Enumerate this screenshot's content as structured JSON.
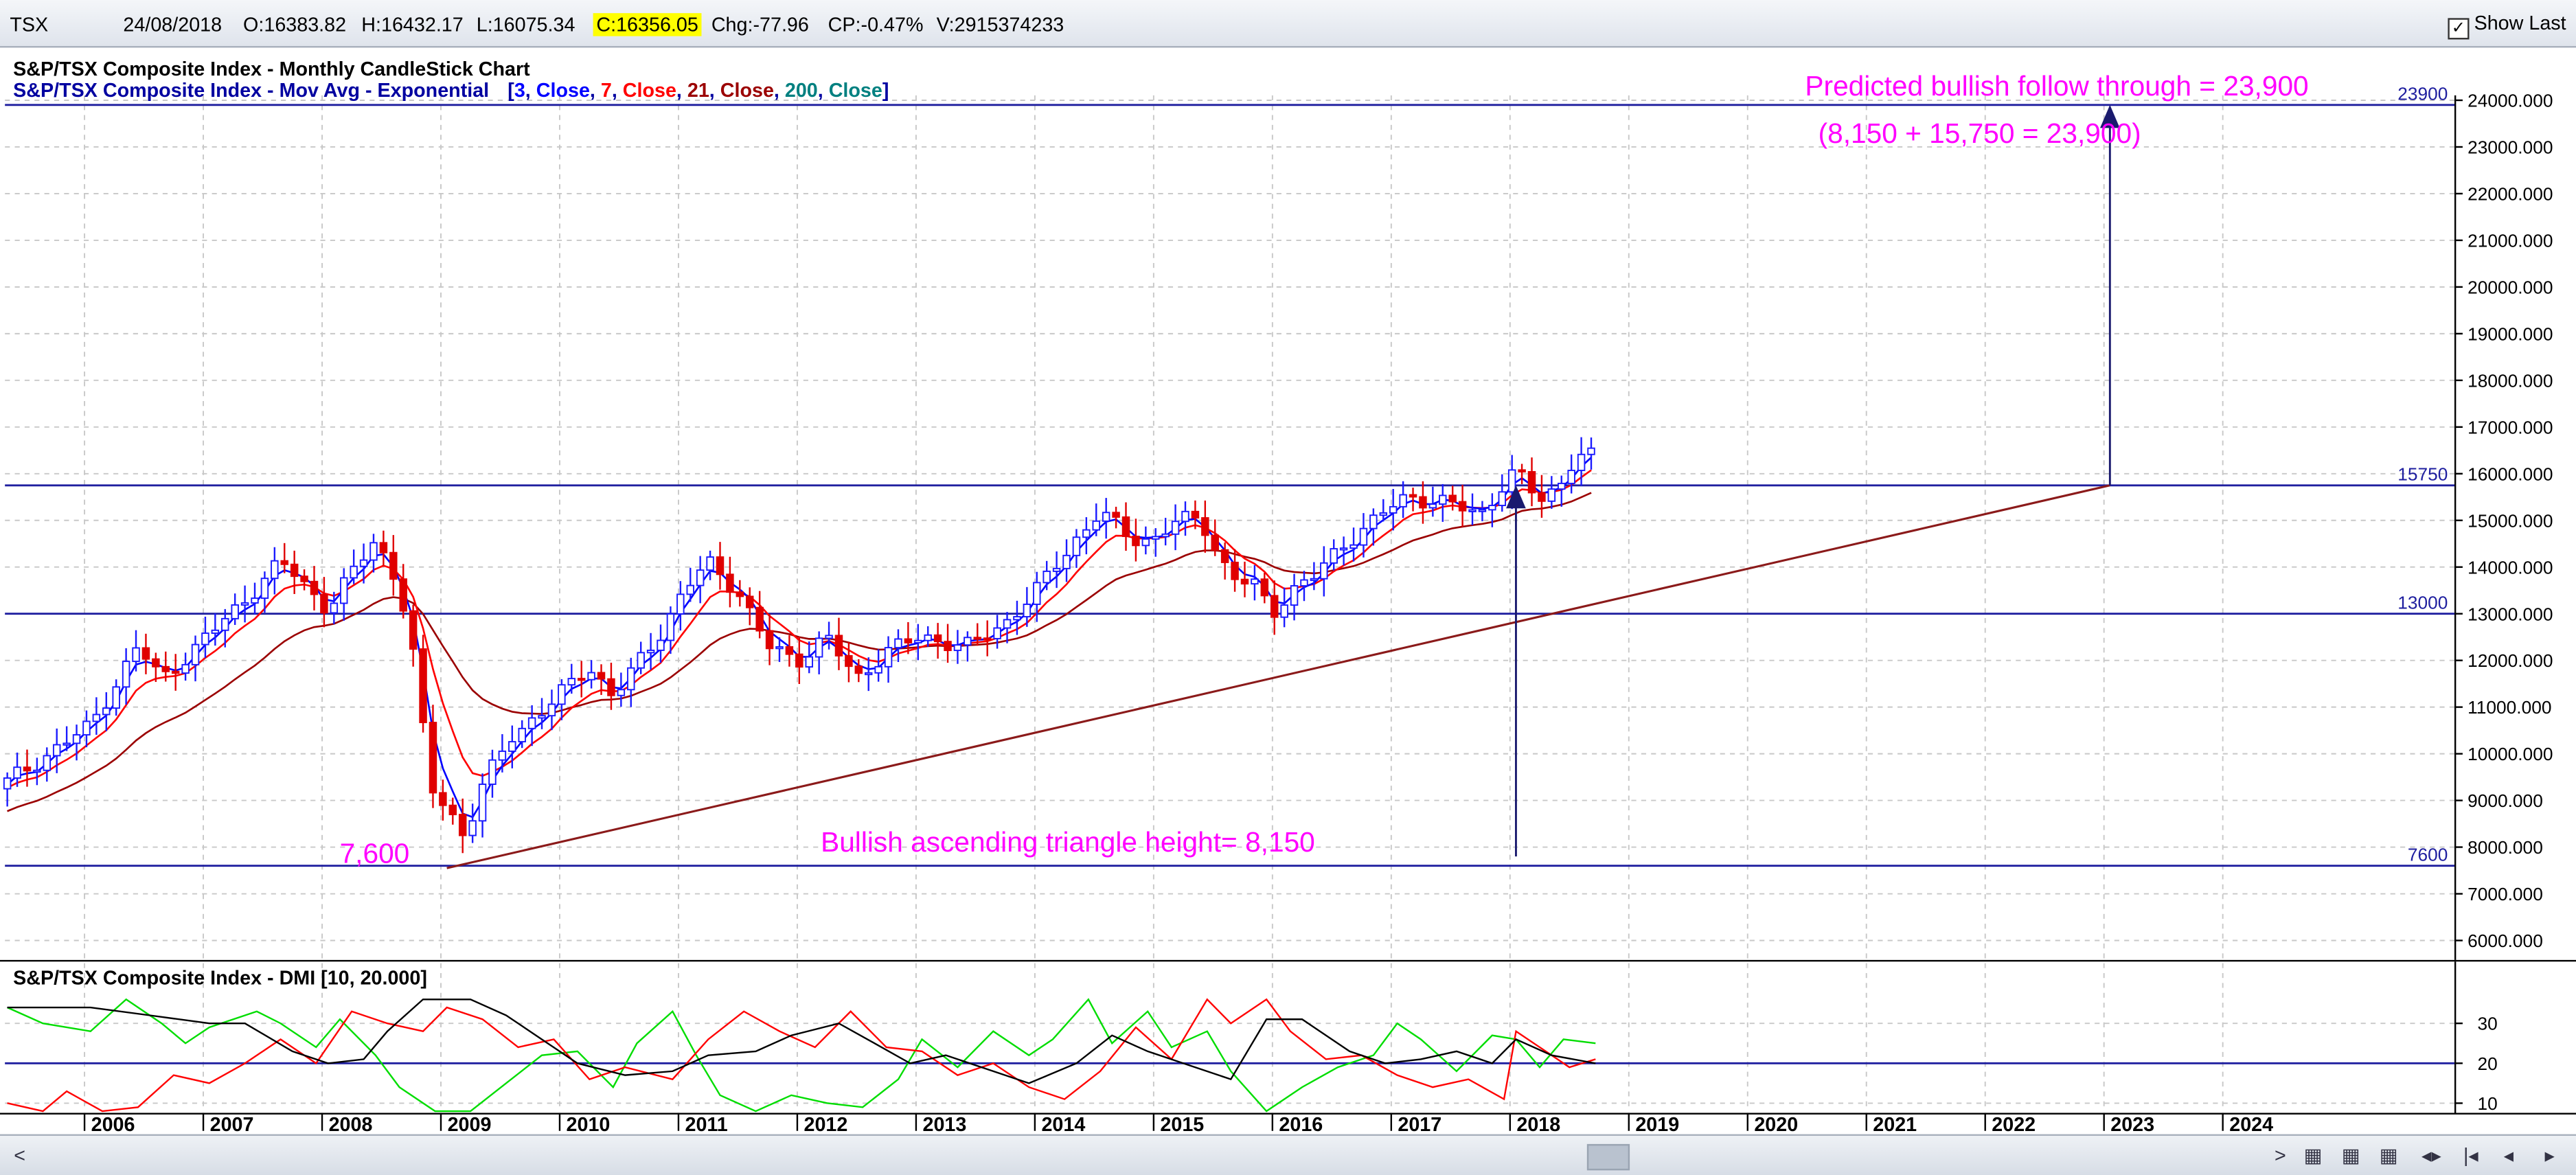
{
  "header": {
    "symbol": "TSX",
    "date": "24/08/2018",
    "open": "O:16383.82",
    "high": "H:16432.17",
    "low": "L:16075.34",
    "close": "C:16356.05",
    "change": "Chg:-77.96",
    "change_pct": "CP:-0.47%",
    "volume": "V:2915374233",
    "show_last_label": "Show Last",
    "show_last_checked": true
  },
  "colors": {
    "grid": "#c8c8c8",
    "candle_up": "#1a1aff",
    "candle_down": "#e00000",
    "ema3": "#0000ff",
    "ema7": "#ff0000",
    "ema21": "#9b0000",
    "ema200": "#008080",
    "hline": "#1f1f9f",
    "annotation": "#ff00ff",
    "dmi_plus": "#00dd00",
    "dmi_minus": "#ff0000",
    "adx": "#000000"
  },
  "chart_data": [
    {
      "type": "candlestick",
      "title": "S&P/TSX Composite Index - Monthly CandleStick Chart",
      "subtitle": {
        "prefix": "S&P/TSX Composite Index - Mov Avg - Exponential",
        "tokens": [
          "[",
          "3",
          ",",
          " Close",
          ",",
          " 7",
          ",",
          " Close",
          ",",
          " 21",
          ",",
          " Close",
          ",",
          " 200",
          ",",
          " Close",
          "]"
        ]
      },
      "y_range": [
        5750,
        24500
      ],
      "y_ticks": [
        "6000.000",
        "7000.000",
        "8000.000",
        "9000.000",
        "10000.000",
        "11000.000",
        "12000.000",
        "13000.000",
        "14000.000",
        "15000.000",
        "16000.000",
        "17000.000",
        "18000.000",
        "19000.000",
        "20000.000",
        "21000.000",
        "22000.000",
        "23000.000",
        "24000.000"
      ],
      "x_labels": [
        "2006",
        "2007",
        "2008",
        "2009",
        "2010",
        "2011",
        "2012",
        "2013",
        "2014",
        "2015",
        "2016",
        "2017",
        "2018",
        "2019",
        "2020",
        "2021",
        "2022",
        "2023",
        "2024"
      ],
      "x_range_years": [
        2005.28,
        2025.9
      ],
      "horizontal_lines": [
        {
          "value": 23900,
          "label": "23900"
        },
        {
          "value": 15750,
          "label": "15750"
        },
        {
          "value": 13000,
          "label": "13000"
        },
        {
          "value": 7600,
          "label": "7600"
        }
      ],
      "monthly_close_keypoints": [
        [
          2005.3,
          9400
        ],
        [
          2006.0,
          10600
        ],
        [
          2006.4,
          12300
        ],
        [
          2006.6,
          11600
        ],
        [
          2006.9,
          12300
        ],
        [
          2007.3,
          13300
        ],
        [
          2007.6,
          14100
        ],
        [
          2007.7,
          13900
        ],
        [
          2008.0,
          13100
        ],
        [
          2008.4,
          14600
        ],
        [
          2008.6,
          13600
        ],
        [
          2008.75,
          11700
        ],
        [
          2008.85,
          9300
        ],
        [
          2009.0,
          8900
        ],
        [
          2009.15,
          8200
        ],
        [
          2009.3,
          9300
        ],
        [
          2009.55,
          10400
        ],
        [
          2009.85,
          11000
        ],
        [
          2010.2,
          11900
        ],
        [
          2010.4,
          11200
        ],
        [
          2010.8,
          12600
        ],
        [
          2011.0,
          13500
        ],
        [
          2011.2,
          14100
        ],
        [
          2011.45,
          13500
        ],
        [
          2011.7,
          12300
        ],
        [
          2011.95,
          12000
        ],
        [
          2012.2,
          12500
        ],
        [
          2012.45,
          11600
        ],
        [
          2012.7,
          12200
        ],
        [
          2013.0,
          12500
        ],
        [
          2013.4,
          12300
        ],
        [
          2013.7,
          12800
        ],
        [
          2014.0,
          13600
        ],
        [
          2014.3,
          14600
        ],
        [
          2014.5,
          15200
        ],
        [
          2014.75,
          14600
        ],
        [
          2014.95,
          14600
        ],
        [
          2015.15,
          15000
        ],
        [
          2015.35,
          15000
        ],
        [
          2015.6,
          13800
        ],
        [
          2015.8,
          13600
        ],
        [
          2015.95,
          13000
        ],
        [
          2016.1,
          13500
        ],
        [
          2016.3,
          13800
        ],
        [
          2016.6,
          14600
        ],
        [
          2016.9,
          15200
        ],
        [
          2017.1,
          15500
        ],
        [
          2017.4,
          15400
        ],
        [
          2017.7,
          15100
        ],
        [
          2017.95,
          16000
        ],
        [
          2018.05,
          15900
        ],
        [
          2018.2,
          15400
        ],
        [
          2018.35,
          15700
        ],
        [
          2018.5,
          16400
        ],
        [
          2018.67,
          16350
        ]
      ],
      "series": [
        {
          "name": "3",
          "type": "ema"
        },
        {
          "name": "7",
          "type": "ema"
        },
        {
          "name": "21",
          "type": "ema"
        },
        {
          "name": "200",
          "type": "ema"
        }
      ],
      "trendline": {
        "from": [
          2009.0,
          7550
        ],
        "to": [
          2023.0,
          15750
        ]
      },
      "annotations": [
        {
          "text": "Predicted bullish follow through = 23,900"
        },
        {
          "text": "(8,150 + 15,750 = 23,900)"
        },
        {
          "text": "Bullish ascending triangle height= 8,150"
        },
        {
          "text": "7,600"
        }
      ],
      "arrows": [
        {
          "x": 2018.0,
          "from": 7800,
          "to": 15750
        },
        {
          "x": 2023.0,
          "from": 15750,
          "to": 23900
        }
      ]
    },
    {
      "type": "line",
      "title": "S&P/TSX Composite Index - DMI [10, 20.000]",
      "y_range": [
        8,
        36
      ],
      "y_ticks": [
        10,
        20,
        30
      ],
      "reference_line": 20,
      "series": [
        {
          "role": "+DI",
          "keypoints": [
            [
              2005.3,
              34
            ],
            [
              2005.6,
              30
            ],
            [
              2006.0,
              28
            ],
            [
              2006.3,
              36
            ],
            [
              2006.6,
              30
            ],
            [
              2006.8,
              25
            ],
            [
              2007.0,
              29
            ],
            [
              2007.4,
              33
            ],
            [
              2007.6,
              30
            ],
            [
              2007.9,
              24
            ],
            [
              2008.1,
              31
            ],
            [
              2008.4,
              22
            ],
            [
              2008.6,
              14
            ],
            [
              2008.9,
              6
            ],
            [
              2009.2,
              4
            ],
            [
              2009.5,
              15
            ],
            [
              2009.8,
              22
            ],
            [
              2010.1,
              23
            ],
            [
              2010.4,
              14
            ],
            [
              2010.6,
              25
            ],
            [
              2010.9,
              33
            ],
            [
              2011.1,
              22
            ],
            [
              2011.3,
              12
            ],
            [
              2011.6,
              8
            ],
            [
              2011.9,
              12
            ],
            [
              2012.2,
              10
            ],
            [
              2012.5,
              9
            ],
            [
              2012.8,
              16
            ],
            [
              2013.0,
              26
            ],
            [
              2013.3,
              19
            ],
            [
              2013.6,
              28
            ],
            [
              2013.9,
              22
            ],
            [
              2014.1,
              26
            ],
            [
              2014.4,
              36
            ],
            [
              2014.6,
              25
            ],
            [
              2014.9,
              33
            ],
            [
              2015.1,
              24
            ],
            [
              2015.4,
              28
            ],
            [
              2015.6,
              18
            ],
            [
              2015.9,
              6
            ],
            [
              2016.2,
              14
            ],
            [
              2016.5,
              19
            ],
            [
              2016.8,
              22
            ],
            [
              2017.0,
              30
            ],
            [
              2017.2,
              26
            ],
            [
              2017.5,
              18
            ],
            [
              2017.8,
              27
            ],
            [
              2018.0,
              26
            ],
            [
              2018.2,
              19
            ],
            [
              2018.4,
              26
            ],
            [
              2018.67,
              25
            ]
          ]
        },
        {
          "role": "-DI",
          "keypoints": [
            [
              2005.3,
              10
            ],
            [
              2005.6,
              7
            ],
            [
              2005.8,
              13
            ],
            [
              2006.1,
              7
            ],
            [
              2006.4,
              9
            ],
            [
              2006.7,
              17
            ],
            [
              2007.0,
              15
            ],
            [
              2007.3,
              20
            ],
            [
              2007.6,
              26
            ],
            [
              2007.9,
              20
            ],
            [
              2008.2,
              33
            ],
            [
              2008.5,
              30
            ],
            [
              2008.8,
              28
            ],
            [
              2009.0,
              34
            ],
            [
              2009.3,
              31
            ],
            [
              2009.6,
              24
            ],
            [
              2009.9,
              26
            ],
            [
              2010.2,
              16
            ],
            [
              2010.5,
              19
            ],
            [
              2010.9,
              16
            ],
            [
              2011.2,
              26
            ],
            [
              2011.5,
              33
            ],
            [
              2011.8,
              28
            ],
            [
              2012.1,
              24
            ],
            [
              2012.4,
              33
            ],
            [
              2012.7,
              24
            ],
            [
              2013.0,
              23
            ],
            [
              2013.3,
              17
            ],
            [
              2013.6,
              20
            ],
            [
              2013.9,
              14
            ],
            [
              2014.2,
              11
            ],
            [
              2014.5,
              18
            ],
            [
              2014.8,
              29
            ],
            [
              2015.1,
              21
            ],
            [
              2015.4,
              36
            ],
            [
              2015.6,
              30
            ],
            [
              2015.9,
              36
            ],
            [
              2016.1,
              28
            ],
            [
              2016.4,
              21
            ],
            [
              2016.7,
              22
            ],
            [
              2017.0,
              17
            ],
            [
              2017.3,
              14
            ],
            [
              2017.6,
              16
            ],
            [
              2017.9,
              11
            ],
            [
              2018.0,
              28
            ],
            [
              2018.2,
              24
            ],
            [
              2018.45,
              19
            ],
            [
              2018.67,
              21
            ]
          ]
        },
        {
          "role": "ADX",
          "keypoints": [
            [
              2005.3,
              34
            ],
            [
              2006.0,
              34
            ],
            [
              2006.5,
              32
            ],
            [
              2007.0,
              30
            ],
            [
              2007.3,
              30
            ],
            [
              2007.7,
              23
            ],
            [
              2008.0,
              20
            ],
            [
              2008.3,
              21
            ],
            [
              2008.5,
              28
            ],
            [
              2008.8,
              36
            ],
            [
              2009.2,
              36
            ],
            [
              2009.5,
              32
            ],
            [
              2009.8,
              26
            ],
            [
              2010.1,
              20
            ],
            [
              2010.5,
              17
            ],
            [
              2010.9,
              18
            ],
            [
              2011.2,
              22
            ],
            [
              2011.6,
              23
            ],
            [
              2011.9,
              27
            ],
            [
              2012.3,
              30
            ],
            [
              2012.6,
              25
            ],
            [
              2012.9,
              20
            ],
            [
              2013.2,
              22
            ],
            [
              2013.6,
              18
            ],
            [
              2013.9,
              15
            ],
            [
              2014.3,
              20
            ],
            [
              2014.6,
              27
            ],
            [
              2014.9,
              23
            ],
            [
              2015.2,
              20
            ],
            [
              2015.6,
              16
            ],
            [
              2015.9,
              31
            ],
            [
              2016.2,
              31
            ],
            [
              2016.6,
              23
            ],
            [
              2016.9,
              20
            ],
            [
              2017.2,
              21
            ],
            [
              2017.5,
              23
            ],
            [
              2017.8,
              20
            ],
            [
              2018.0,
              26
            ],
            [
              2018.3,
              22
            ],
            [
              2018.67,
              20
            ]
          ]
        }
      ]
    }
  ]
}
